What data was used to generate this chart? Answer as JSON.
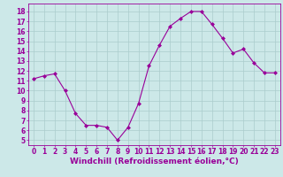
{
  "x": [
    0,
    1,
    2,
    3,
    4,
    5,
    6,
    7,
    8,
    9,
    10,
    11,
    12,
    13,
    14,
    15,
    16,
    17,
    18,
    19,
    20,
    21,
    22,
    23
  ],
  "y": [
    11.2,
    11.5,
    11.7,
    10.0,
    7.7,
    6.5,
    6.5,
    6.3,
    5.0,
    6.3,
    8.7,
    12.5,
    14.6,
    16.5,
    17.3,
    18.0,
    18.0,
    16.7,
    15.3,
    13.8,
    14.2,
    12.8,
    11.8,
    11.8
  ],
  "line_color": "#990099",
  "marker": "D",
  "marker_size": 2.0,
  "bg_color": "#cce8e8",
  "grid_color": "#aacccc",
  "xlabel": "Windchill (Refroidissement éolien,°C)",
  "xlabel_fontsize": 6.5,
  "tick_fontsize": 5.5,
  "ylim": [
    4.5,
    18.8
  ],
  "xlim": [
    -0.5,
    23.5
  ],
  "yticks": [
    5,
    6,
    7,
    8,
    9,
    10,
    11,
    12,
    13,
    14,
    15,
    16,
    17,
    18
  ],
  "xticks": [
    0,
    1,
    2,
    3,
    4,
    5,
    6,
    7,
    8,
    9,
    10,
    11,
    12,
    13,
    14,
    15,
    16,
    17,
    18,
    19,
    20,
    21,
    22,
    23
  ]
}
